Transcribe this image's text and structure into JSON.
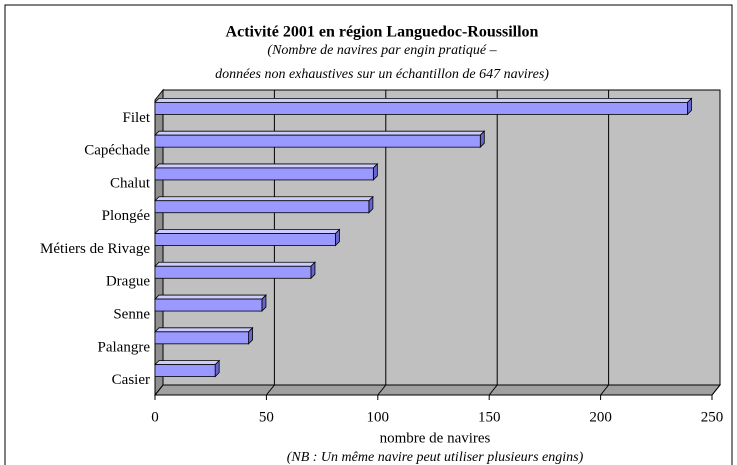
{
  "chart_data": {
    "type": "bar",
    "orientation": "horizontal",
    "title": "Activité 2001 en région Languedoc-Roussillon",
    "subtitle": [
      "(Nombre de navires par engin pratiqué –",
      "données non exhaustives sur un échantillon de 647 navires)"
    ],
    "categories": [
      "Filet",
      "Capéchade",
      "Chalut",
      "Plongée",
      "Métiers de Rivage",
      "Drague",
      "Senne",
      "Palangre",
      "Casier"
    ],
    "values": [
      239,
      146,
      98,
      96,
      81,
      70,
      48,
      42,
      27
    ],
    "color": "#9999ff",
    "xlim": [
      0,
      250
    ],
    "xticks": [
      0,
      50,
      100,
      150,
      200,
      250
    ],
    "xlabel": "nombre de navires",
    "note": "(NB : Un même navire peut utiliser plusieurs engins)",
    "grid": true
  }
}
